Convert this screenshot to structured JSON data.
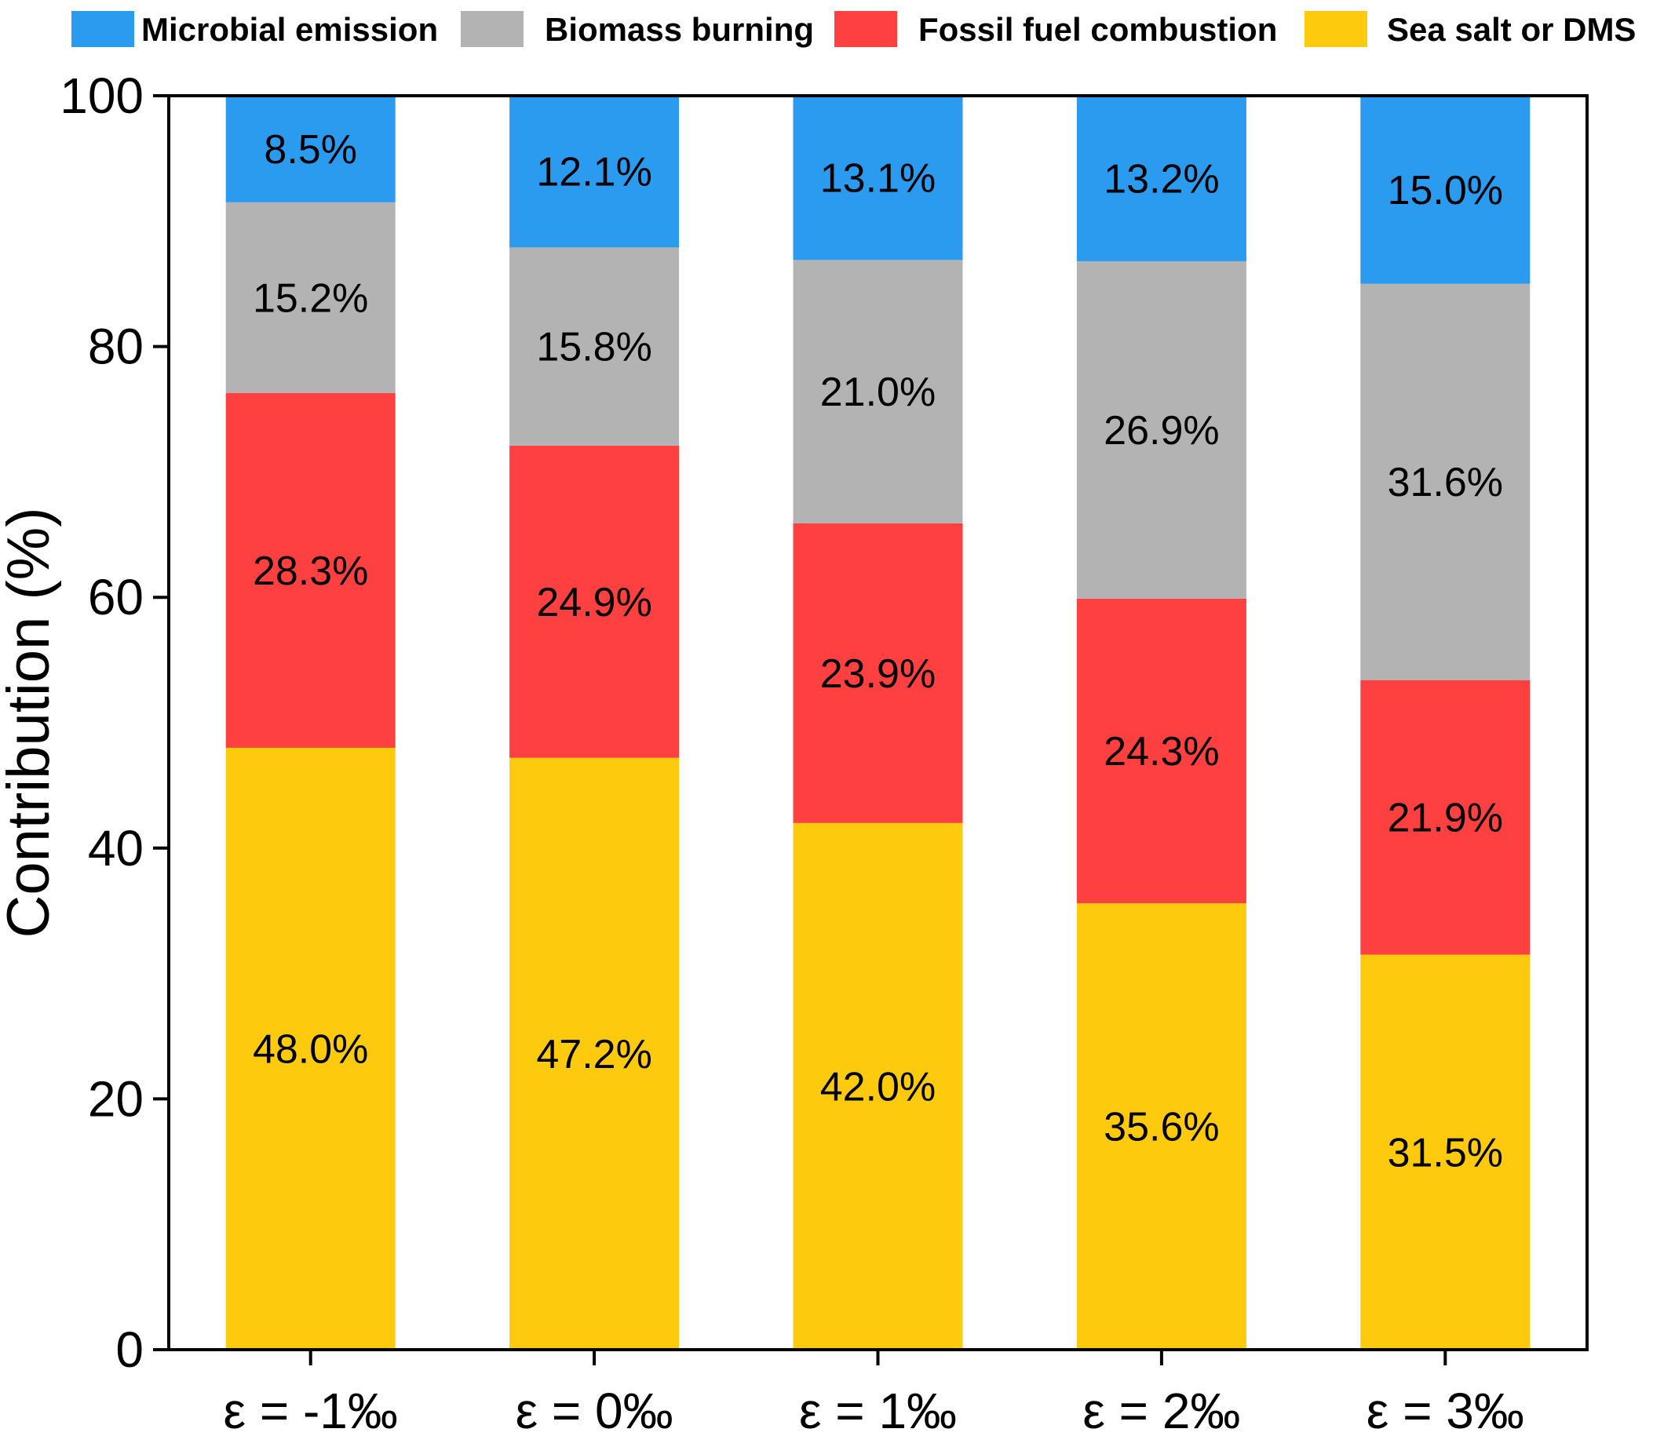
{
  "chart_data": {
    "type": "bar",
    "stacked": true,
    "title": "",
    "xlabel": "",
    "ylabel": "Contribution (%)",
    "ylim": [
      0,
      100
    ],
    "yticks": [
      0,
      20,
      40,
      60,
      80,
      100
    ],
    "categories": [
      "ε = -1‰",
      "ε = 0‰",
      "ε = 1‰",
      "ε = 2‰",
      "ε = 3‰"
    ],
    "series": [
      {
        "name": "Sea salt or DMS",
        "color": "#FDCA0E",
        "values": [
          48.0,
          47.2,
          42.0,
          35.6,
          31.5
        ],
        "labels": [
          "48.0%",
          "47.2%",
          "42.0%",
          "35.6%",
          "31.5%"
        ]
      },
      {
        "name": "Fossil fuel combustion",
        "color": "#FF4040",
        "values": [
          28.3,
          24.9,
          23.9,
          24.3,
          21.9
        ],
        "labels": [
          "28.3%",
          "24.9%",
          "23.9%",
          "24.3%",
          "21.9%"
        ]
      },
      {
        "name": "Biomass burning",
        "color": "#B3B3B3",
        "values": [
          15.2,
          15.8,
          21.0,
          26.9,
          31.6
        ],
        "labels": [
          "15.2%",
          "15.8%",
          "21.0%",
          "26.9%",
          "31.6%"
        ]
      },
      {
        "name": "Microbial emission",
        "color": "#2B9BEF",
        "values": [
          8.5,
          12.1,
          13.1,
          13.2,
          15.0
        ],
        "labels": [
          "8.5%",
          "12.1%",
          "13.1%",
          "13.2%",
          "15.0%"
        ]
      }
    ],
    "legend": {
      "placement": "top",
      "order": [
        "Microbial emission",
        "Biomass burning",
        "Fossil fuel combustion",
        "Sea salt or DMS"
      ]
    }
  }
}
